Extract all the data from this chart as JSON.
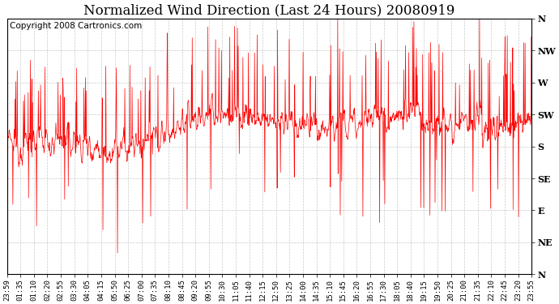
{
  "title": "Normalized Wind Direction (Last 24 Hours) 20080919",
  "copyright_text": "Copyright 2008 Cartronics.com",
  "line_color": "#FF0000",
  "background_color": "#FFFFFF",
  "grid_color": "#BBBBBB",
  "ytick_labels": [
    "N",
    "NW",
    "W",
    "SW",
    "S",
    "SE",
    "E",
    "NE",
    "N"
  ],
  "ytick_values": [
    8,
    7,
    6,
    5,
    4,
    3,
    2,
    1,
    0
  ],
  "ylim": [
    0,
    8
  ],
  "xtick_labels": [
    "23:59",
    "01:35",
    "01:10",
    "02:20",
    "02:55",
    "03:30",
    "04:05",
    "04:15",
    "05:50",
    "06:25",
    "07:00",
    "07:35",
    "08:10",
    "08:45",
    "09:20",
    "09:55",
    "10:30",
    "11:05",
    "11:40",
    "12:15",
    "12:50",
    "13:25",
    "14:00",
    "14:35",
    "15:10",
    "15:45",
    "16:20",
    "16:55",
    "17:30",
    "18:05",
    "18:40",
    "19:15",
    "19:50",
    "20:25",
    "21:00",
    "21:35",
    "22:10",
    "22:45",
    "23:20",
    "23:55"
  ],
  "title_fontsize": 12,
  "tick_fontsize": 7,
  "copyright_fontsize": 7.5
}
